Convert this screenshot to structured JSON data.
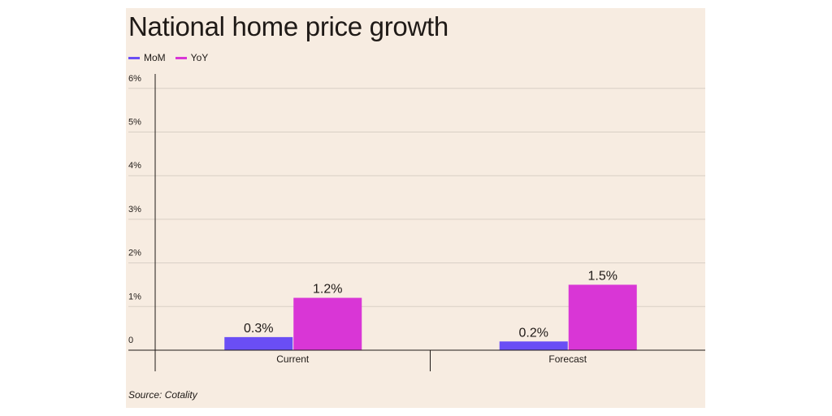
{
  "title": "National home price growth",
  "source": "Source: Cotality",
  "colors": {
    "background": "#f7ece1",
    "mom": "#6a4ef5",
    "yoy": "#d936d6",
    "grid": "#d9cfc5",
    "axis": "#1f1a17"
  },
  "chart_data": {
    "type": "bar",
    "title": "National home price growth",
    "categories": [
      "Current",
      "Forecast"
    ],
    "series": [
      {
        "name": "MoM",
        "values": [
          0.3,
          0.2
        ],
        "labels": [
          "0.3%",
          "0.2%"
        ],
        "color": "#6a4ef5"
      },
      {
        "name": "YoY",
        "values": [
          1.2,
          1.5
        ],
        "labels": [
          "1.2%",
          "1.5%"
        ],
        "color": "#d936d6"
      }
    ],
    "yticks": [
      "0",
      "1%",
      "2%",
      "3%",
      "4%",
      "5%",
      "6%"
    ],
    "ylim": [
      0,
      6
    ],
    "xlabel": "",
    "ylabel": "",
    "grid": true,
    "legend": "top-left"
  }
}
